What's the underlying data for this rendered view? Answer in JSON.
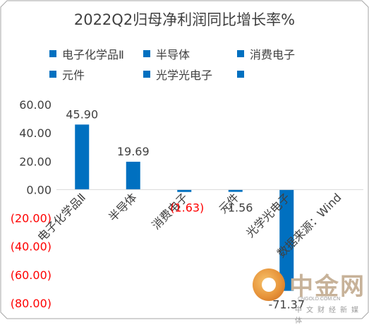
{
  "chart_data": {
    "type": "bar",
    "title": "2022Q2归母净利润同比增长率%",
    "categories": [
      "电子化学品Ⅱ",
      "半导体",
      "消费电子",
      "元件",
      "光学光电子",
      "数据来源：Wind"
    ],
    "values": [
      45.9,
      19.69,
      -1.63,
      -1.56,
      -71.37,
      null
    ],
    "data_labels": [
      "45.90",
      "19.69",
      "(1.63)",
      "-1.56",
      "-71.37",
      ""
    ],
    "legend": [
      "电子化学品Ⅱ",
      "半导体",
      "消费电子",
      "元件",
      "光学光电子",
      ""
    ],
    "y_ticks": [
      60,
      40,
      20,
      0,
      -20,
      -40,
      -60,
      -80
    ],
    "y_tick_labels": [
      "60.00",
      "40.00",
      "20.00",
      "0.00",
      "(20.00)",
      "(40.00)",
      "(60.00)",
      "(80.00)"
    ],
    "ylim": [
      -80,
      60
    ],
    "grid": false,
    "legend_position": "top",
    "bar_color": "#0070C0",
    "negative_tick_color": "#FF0000",
    "axis_text_color": "#404040"
  },
  "watermark": {
    "brand": "中金网",
    "url": "CNGOLD.COM.CN",
    "slogan": "中文财经新媒体"
  }
}
